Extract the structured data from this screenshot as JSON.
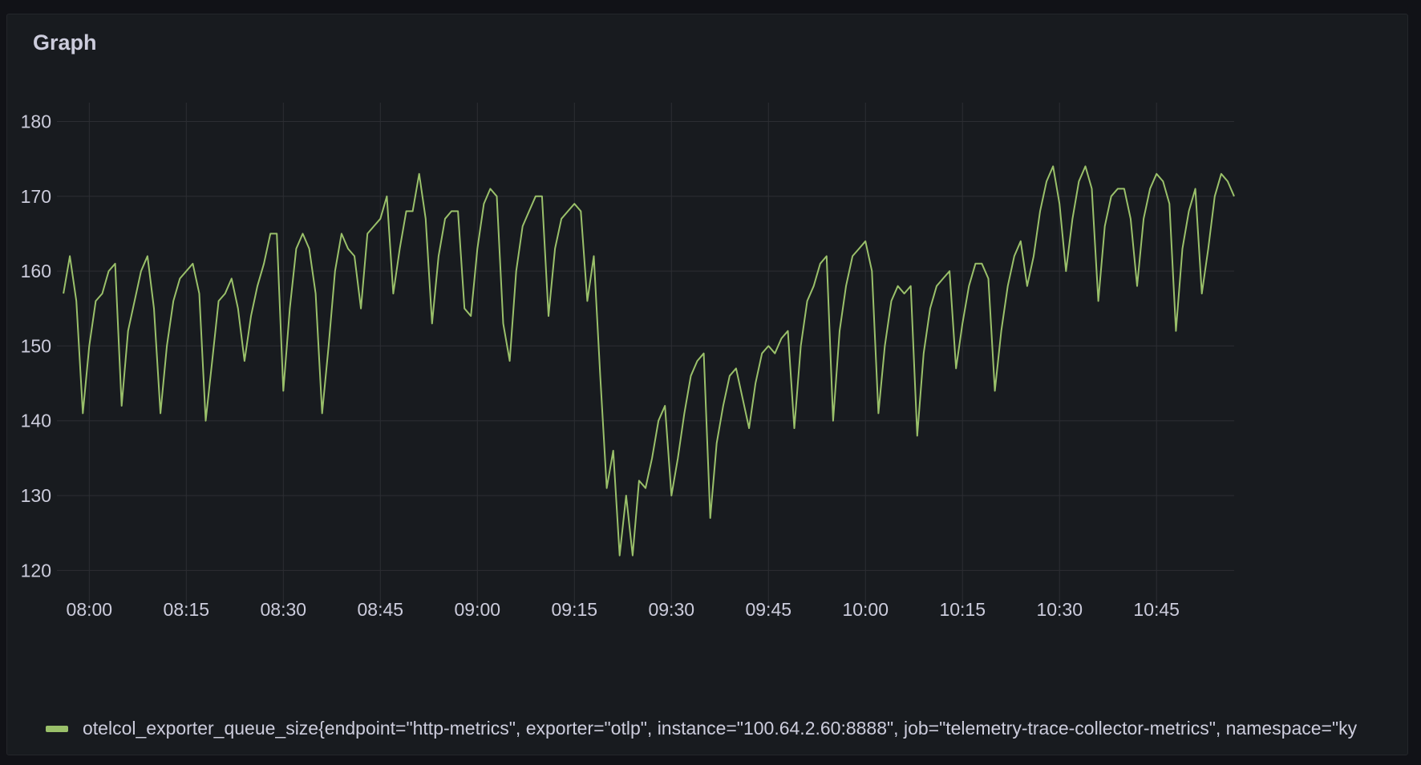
{
  "panel": {
    "title": "Graph"
  },
  "chart_data": {
    "type": "line",
    "title": "Graph",
    "xlabel": "",
    "ylabel": "",
    "ylim": [
      115,
      180
    ],
    "yticks": [
      120,
      130,
      140,
      150,
      160,
      170,
      180
    ],
    "xlim": [
      "07:56",
      "10:53"
    ],
    "xticks": [
      "08:00",
      "08:15",
      "08:30",
      "08:45",
      "09:00",
      "09:15",
      "09:30",
      "09:45",
      "10:00",
      "10:15",
      "10:30",
      "10:45"
    ],
    "grid": true,
    "legend_position": "bottom",
    "series": [
      {
        "name": "otelcol_exporter_queue_size{endpoint=\"http-metrics\", exporter=\"otlp\", instance=\"100.64.2.60:8888\", job=\"telemetry-trace-collector-metrics\", namespace=\"ky",
        "color": "#9ac06a",
        "points": [
          [
            "07:56",
            157
          ],
          [
            "07:57",
            162
          ],
          [
            "07:58",
            156
          ],
          [
            "07:59",
            141
          ],
          [
            "08:00",
            150
          ],
          [
            "08:01",
            156
          ],
          [
            "08:02",
            157
          ],
          [
            "08:03",
            160
          ],
          [
            "08:04",
            161
          ],
          [
            "08:05",
            142
          ],
          [
            "08:06",
            152
          ],
          [
            "08:07",
            156
          ],
          [
            "08:08",
            160
          ],
          [
            "08:09",
            162
          ],
          [
            "08:10",
            155
          ],
          [
            "08:11",
            141
          ],
          [
            "08:12",
            150
          ],
          [
            "08:13",
            156
          ],
          [
            "08:14",
            159
          ],
          [
            "08:15",
            160
          ],
          [
            "08:16",
            161
          ],
          [
            "08:17",
            157
          ],
          [
            "08:18",
            140
          ],
          [
            "08:19",
            148
          ],
          [
            "08:20",
            156
          ],
          [
            "08:21",
            157
          ],
          [
            "08:22",
            159
          ],
          [
            "08:23",
            155
          ],
          [
            "08:24",
            148
          ],
          [
            "08:25",
            154
          ],
          [
            "08:26",
            158
          ],
          [
            "08:27",
            161
          ],
          [
            "08:28",
            165
          ],
          [
            "08:29",
            165
          ],
          [
            "08:30",
            144
          ],
          [
            "08:31",
            155
          ],
          [
            "08:32",
            163
          ],
          [
            "08:33",
            165
          ],
          [
            "08:34",
            163
          ],
          [
            "08:35",
            157
          ],
          [
            "08:36",
            141
          ],
          [
            "08:37",
            150
          ],
          [
            "08:38",
            160
          ],
          [
            "08:39",
            165
          ],
          [
            "08:40",
            163
          ],
          [
            "08:41",
            162
          ],
          [
            "08:42",
            155
          ],
          [
            "08:43",
            165
          ],
          [
            "08:44",
            166
          ],
          [
            "08:45",
            167
          ],
          [
            "08:46",
            170
          ],
          [
            "08:47",
            157
          ],
          [
            "08:48",
            163
          ],
          [
            "08:49",
            168
          ],
          [
            "08:50",
            168
          ],
          [
            "08:51",
            173
          ],
          [
            "08:52",
            167
          ],
          [
            "08:53",
            153
          ],
          [
            "08:54",
            162
          ],
          [
            "08:55",
            167
          ],
          [
            "08:56",
            168
          ],
          [
            "08:57",
            168
          ],
          [
            "08:58",
            155
          ],
          [
            "08:59",
            154
          ],
          [
            "09:00",
            163
          ],
          [
            "09:01",
            169
          ],
          [
            "09:02",
            171
          ],
          [
            "09:03",
            170
          ],
          [
            "09:04",
            153
          ],
          [
            "09:05",
            148
          ],
          [
            "09:06",
            160
          ],
          [
            "09:07",
            166
          ],
          [
            "09:08",
            168
          ],
          [
            "09:09",
            170
          ],
          [
            "09:10",
            170
          ],
          [
            "09:11",
            154
          ],
          [
            "09:12",
            163
          ],
          [
            "09:13",
            167
          ],
          [
            "09:14",
            168
          ],
          [
            "09:15",
            169
          ],
          [
            "09:16",
            168
          ],
          [
            "09:17",
            156
          ],
          [
            "09:18",
            162
          ],
          [
            "09:19",
            146
          ],
          [
            "09:20",
            131
          ],
          [
            "09:21",
            136
          ],
          [
            "09:22",
            122
          ],
          [
            "09:23",
            130
          ],
          [
            "09:24",
            122
          ],
          [
            "09:25",
            132
          ],
          [
            "09:26",
            131
          ],
          [
            "09:27",
            135
          ],
          [
            "09:28",
            140
          ],
          [
            "09:29",
            142
          ],
          [
            "09:30",
            130
          ],
          [
            "09:31",
            135
          ],
          [
            "09:32",
            141
          ],
          [
            "09:33",
            146
          ],
          [
            "09:34",
            148
          ],
          [
            "09:35",
            149
          ],
          [
            "09:36",
            127
          ],
          [
            "09:37",
            137
          ],
          [
            "09:38",
            142
          ],
          [
            "09:39",
            146
          ],
          [
            "09:40",
            147
          ],
          [
            "09:41",
            143
          ],
          [
            "09:42",
            139
          ],
          [
            "09:43",
            145
          ],
          [
            "09:44",
            149
          ],
          [
            "09:45",
            150
          ],
          [
            "09:46",
            149
          ],
          [
            "09:47",
            151
          ],
          [
            "09:48",
            152
          ],
          [
            "09:49",
            139
          ],
          [
            "09:50",
            150
          ],
          [
            "09:51",
            156
          ],
          [
            "09:52",
            158
          ],
          [
            "09:53",
            161
          ],
          [
            "09:54",
            162
          ],
          [
            "09:55",
            140
          ],
          [
            "09:56",
            152
          ],
          [
            "09:57",
            158
          ],
          [
            "09:58",
            162
          ],
          [
            "09:59",
            163
          ],
          [
            "10:00",
            164
          ],
          [
            "10:01",
            160
          ],
          [
            "10:02",
            141
          ],
          [
            "10:03",
            150
          ],
          [
            "10:04",
            156
          ],
          [
            "10:05",
            158
          ],
          [
            "10:06",
            157
          ],
          [
            "10:07",
            158
          ],
          [
            "10:08",
            138
          ],
          [
            "10:09",
            149
          ],
          [
            "10:10",
            155
          ],
          [
            "10:11",
            158
          ],
          [
            "10:12",
            159
          ],
          [
            "10:13",
            160
          ],
          [
            "10:14",
            147
          ],
          [
            "10:15",
            153
          ],
          [
            "10:16",
            158
          ],
          [
            "10:17",
            161
          ],
          [
            "10:18",
            161
          ],
          [
            "10:19",
            159
          ],
          [
            "10:20",
            144
          ],
          [
            "10:21",
            152
          ],
          [
            "10:22",
            158
          ],
          [
            "10:23",
            162
          ],
          [
            "10:24",
            164
          ],
          [
            "10:25",
            158
          ],
          [
            "10:26",
            162
          ],
          [
            "10:27",
            168
          ],
          [
            "10:28",
            172
          ],
          [
            "10:29",
            174
          ],
          [
            "10:30",
            169
          ],
          [
            "10:31",
            160
          ],
          [
            "10:32",
            167
          ],
          [
            "10:33",
            172
          ],
          [
            "10:34",
            174
          ],
          [
            "10:35",
            171
          ],
          [
            "10:36",
            156
          ],
          [
            "10:37",
            166
          ],
          [
            "10:38",
            170
          ],
          [
            "10:39",
            171
          ],
          [
            "10:40",
            171
          ],
          [
            "10:41",
            167
          ],
          [
            "10:42",
            158
          ],
          [
            "10:43",
            167
          ],
          [
            "10:44",
            171
          ],
          [
            "10:45",
            173
          ],
          [
            "10:46",
            172
          ],
          [
            "10:47",
            169
          ],
          [
            "10:48",
            152
          ],
          [
            "10:49",
            163
          ],
          [
            "10:50",
            168
          ],
          [
            "10:51",
            171
          ],
          [
            "10:52",
            157
          ],
          [
            "10:53",
            163
          ],
          [
            "10:54",
            170
          ],
          [
            "10:55",
            173
          ],
          [
            "10:56",
            172
          ],
          [
            "10:57",
            170
          ]
        ]
      }
    ]
  }
}
